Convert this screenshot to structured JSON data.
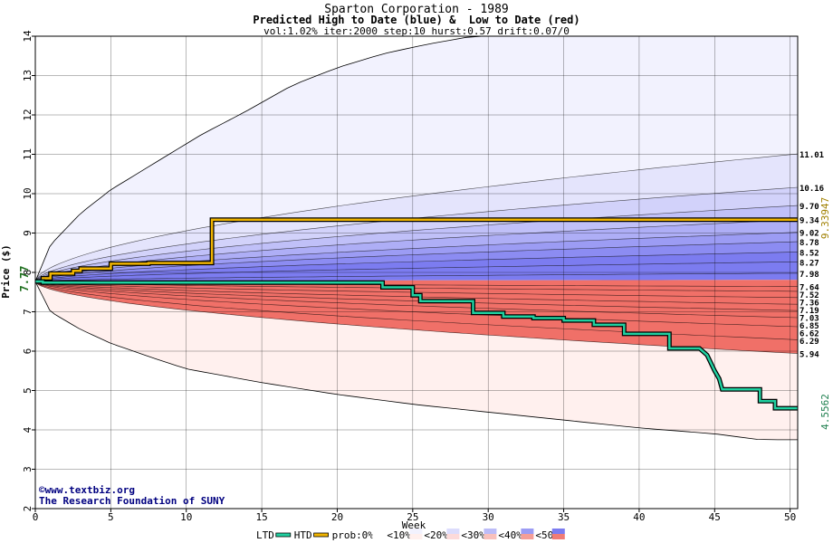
{
  "chart_data": {
    "type": "area",
    "title": "Sparton Corporation - 1989",
    "subtitle": "Predicted High to Date (blue) &  Low to Date (red)",
    "params": "vol:1.02% iter:2000 step:10 hurst:0.57 drift:0.07/0",
    "xlabel": "Week",
    "ylabel": "Price ($)",
    "xlim": [
      0,
      50.5
    ],
    "ylim": [
      2,
      14
    ],
    "x_ticks": [
      0,
      5,
      10,
      15,
      20,
      25,
      30,
      35,
      40,
      45,
      50
    ],
    "y_ticks": [
      2,
      3,
      4,
      5,
      6,
      7,
      8,
      9,
      10,
      11,
      12,
      13,
      14
    ],
    "grid": true,
    "start_price": 7.77,
    "start_label": "7.77",
    "hi_end_labels": [
      "11.01",
      "10.16",
      "9.70",
      "9.34",
      "9.02",
      "8.78",
      "8.52",
      "8.27",
      "7.98"
    ],
    "lo_end_labels": [
      "7.64",
      "7.52",
      "7.36",
      "7.19",
      "7.03",
      "6.85",
      "6.62",
      "6.29",
      "5.94"
    ],
    "hi_quantile_ends": [
      11.01,
      10.16,
      9.7,
      9.34,
      9.02,
      8.78,
      8.52,
      8.27,
      7.98
    ],
    "lo_quantile_ends": [
      7.64,
      7.52,
      7.36,
      7.19,
      7.03,
      6.85,
      6.62,
      6.29,
      5.94
    ],
    "hi_outer_path": [
      [
        0,
        7.77
      ],
      [
        1,
        8.7
      ],
      [
        3,
        9.5
      ],
      [
        5,
        10.1
      ],
      [
        8,
        10.8
      ],
      [
        11,
        11.5
      ],
      [
        14,
        12.1
      ],
      [
        17,
        12.75
      ],
      [
        20,
        13.2
      ],
      [
        23,
        13.55
      ],
      [
        26,
        13.8
      ],
      [
        29,
        14.0
      ]
    ],
    "lo_outer_path": [
      [
        0,
        7.77
      ],
      [
        1,
        7.0
      ],
      [
        3,
        6.55
      ],
      [
        5,
        6.2
      ],
      [
        8,
        5.8
      ],
      [
        10,
        5.55
      ],
      [
        15,
        5.2
      ],
      [
        20,
        4.9
      ],
      [
        25,
        4.65
      ],
      [
        30,
        4.45
      ],
      [
        35,
        4.25
      ],
      [
        40,
        4.05
      ],
      [
        45,
        3.9
      ],
      [
        48,
        3.75
      ],
      [
        50.5,
        3.75
      ]
    ],
    "series": [
      {
        "name": "HTD",
        "color": "#f0b400",
        "end_value": 9.33947,
        "end_label": "9.33947",
        "points": [
          [
            0,
            7.77
          ],
          [
            0.5,
            7.77
          ],
          [
            0.5,
            7.85
          ],
          [
            1,
            7.85
          ],
          [
            1,
            7.97
          ],
          [
            2.5,
            7.97
          ],
          [
            2.5,
            8.04
          ],
          [
            3,
            8.04
          ],
          [
            3,
            8.1
          ],
          [
            5,
            8.1
          ],
          [
            5,
            8.22
          ],
          [
            7.5,
            8.22
          ],
          [
            7.5,
            8.24
          ],
          [
            11.7,
            8.24
          ],
          [
            11.7,
            9.34
          ],
          [
            50.5,
            9.34
          ]
        ]
      },
      {
        "name": "LTD",
        "color": "#20d0a0",
        "end_value": 4.5562,
        "end_label": "4.5562",
        "points": [
          [
            0,
            7.77
          ],
          [
            0.5,
            7.77
          ],
          [
            0.5,
            7.74
          ],
          [
            23,
            7.74
          ],
          [
            23,
            7.62
          ],
          [
            25,
            7.62
          ],
          [
            25,
            7.42
          ],
          [
            25.5,
            7.42
          ],
          [
            25.5,
            7.27
          ],
          [
            29,
            7.27
          ],
          [
            29,
            6.97
          ],
          [
            31,
            6.97
          ],
          [
            31,
            6.88
          ],
          [
            33,
            6.88
          ],
          [
            33,
            6.84
          ],
          [
            35,
            6.84
          ],
          [
            35,
            6.78
          ],
          [
            37,
            6.78
          ],
          [
            37,
            6.67
          ],
          [
            39,
            6.67
          ],
          [
            39,
            6.44
          ],
          [
            42,
            6.44
          ],
          [
            42,
            6.07
          ],
          [
            44,
            6.07
          ],
          [
            44.5,
            5.9
          ],
          [
            45,
            5.5
          ],
          [
            45.3,
            5.3
          ],
          [
            45.5,
            5.03
          ],
          [
            48,
            5.03
          ],
          [
            48,
            4.73
          ],
          [
            49,
            4.73
          ],
          [
            49,
            4.55
          ],
          [
            50.5,
            4.55
          ]
        ]
      }
    ],
    "watermark": [
      "©www.textbiz.org",
      "The Research Foundation of SUNY"
    ],
    "legend": {
      "position": "bottom",
      "line_items": [
        {
          "label": "LTD",
          "color": "#20d0a0"
        },
        {
          "label": "HTD",
          "color": "#f0b400"
        }
      ],
      "prefix": "prob:",
      "prob_items": [
        {
          "label": "0%<",
          "hi": "#ffffff",
          "lo": "#ffffff"
        },
        {
          "label": "<10%<",
          "hi": "#f2f2fe",
          "lo": "#fff0ee"
        },
        {
          "label": "<20%<",
          "hi": "#dcdcfc",
          "lo": "#fcdada"
        },
        {
          "label": "<30%<",
          "hi": "#bcbcf8",
          "lo": "#f8c0bc"
        },
        {
          "label": "<40%<",
          "hi": "#9c9cf4",
          "lo": "#f49e98"
        },
        {
          "label": "<50%",
          "hi": "#7c7cf0",
          "lo": "#f07c76"
        }
      ]
    },
    "colors": {
      "hi_bands": [
        "#f2f2fe",
        "#e4e4fc",
        "#d2d2fa",
        "#c0c0f8",
        "#aeaef6",
        "#9c9cf4",
        "#8c8cf2",
        "#7c7cf0"
      ],
      "lo_bands": [
        "#fff0ee",
        "#fddcda",
        "#fbc8c4",
        "#f9b4ae",
        "#f7a09a",
        "#f58c86",
        "#f37c76",
        "#f07068"
      ],
      "start_label": "#207020",
      "htd_label": "#a08000",
      "ltd_label": "#208050"
    }
  }
}
